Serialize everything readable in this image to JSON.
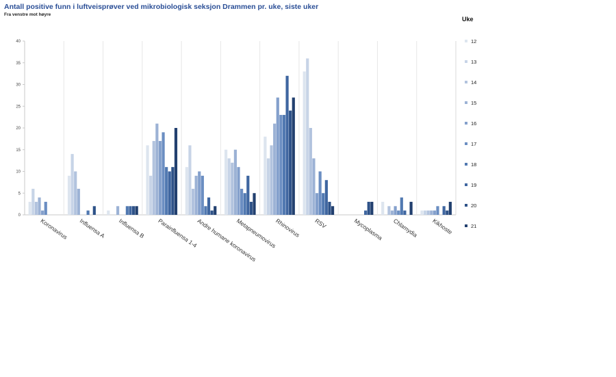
{
  "chart_data": {
    "type": "bar",
    "title": "Antall positive funn i luftveisprøver ved mikrobiologisk seksjon Drammen pr. uke, siste uker",
    "subtitle": "Fra venstre mot høyre",
    "legend_title": "Uke",
    "legend_position": "right",
    "ylim": [
      0,
      40
    ],
    "yticks": [
      0,
      5,
      10,
      15,
      20,
      25,
      30,
      35,
      40
    ],
    "grid": "vertical category separators",
    "categories": [
      "Koronavirus",
      "Influensa A",
      "Influensa B",
      "Parainfluensa 1-4",
      "Andre humane koronavirus",
      "Metapneumovirus",
      "Rhinovirus",
      "RSV",
      "Mycoplasma",
      "Chlamydia",
      "Kikhoste"
    ],
    "series": [
      {
        "name": "12",
        "color": "#dde5ef",
        "values": [
          3,
          9,
          1,
          16,
          11,
          15,
          18,
          33,
          0,
          3,
          1
        ]
      },
      {
        "name": "13",
        "color": "#c7d4e7",
        "values": [
          6,
          14,
          0,
          9,
          16,
          13,
          13,
          36,
          0,
          0,
          1
        ]
      },
      {
        "name": "14",
        "color": "#b2c3de",
        "values": [
          3,
          10,
          0,
          17,
          6,
          12,
          16,
          20,
          0,
          2,
          1
        ]
      },
      {
        "name": "15",
        "color": "#9cb2d5",
        "values": [
          4,
          6,
          2,
          21,
          9,
          15,
          21,
          13,
          0,
          1,
          1
        ]
      },
      {
        "name": "16",
        "color": "#84a0cc",
        "values": [
          1,
          0,
          0,
          17,
          10,
          11,
          27,
          5,
          0,
          2,
          1
        ]
      },
      {
        "name": "17",
        "color": "#6b8ec2",
        "values": [
          3,
          0,
          0,
          19,
          9,
          6,
          23,
          10,
          0,
          1,
          2
        ]
      },
      {
        "name": "18",
        "color": "#5179b1",
        "values": [
          0,
          1,
          2,
          11,
          2,
          5,
          23,
          5,
          0,
          4,
          0
        ]
      },
      {
        "name": "19",
        "color": "#3f66a0",
        "values": [
          0,
          0,
          2,
          10,
          4,
          9,
          32,
          8,
          1,
          1,
          2
        ]
      },
      {
        "name": "20",
        "color": "#2e5288",
        "values": [
          0,
          2,
          2,
          11,
          1,
          3,
          24,
          3,
          3,
          0,
          1
        ]
      },
      {
        "name": "21",
        "color": "#22406f",
        "values": [
          0,
          0,
          2,
          20,
          2,
          5,
          27,
          2,
          3,
          3,
          3
        ]
      }
    ]
  }
}
